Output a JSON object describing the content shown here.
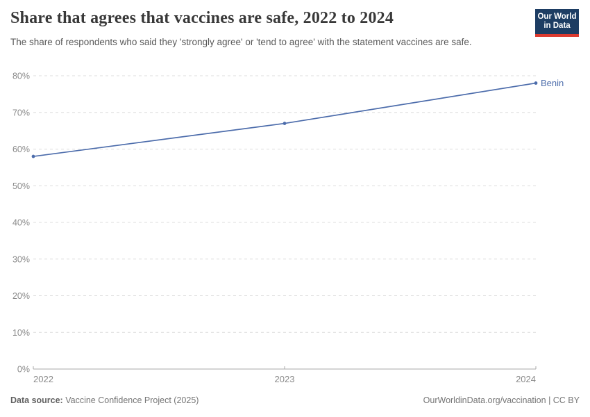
{
  "header": {
    "title": "Share that agrees that vaccines are safe, 2022 to 2024",
    "subtitle": "The share of respondents who said they 'strongly agree' or 'tend to agree' with the statement vaccines are safe."
  },
  "logo": {
    "line1": "Our World",
    "line2": "in Data",
    "bg_color": "#1d3d63",
    "accent_color": "#dc3a2f"
  },
  "chart_data": {
    "type": "line",
    "title": "Share that agrees that vaccines are safe, 2022 to 2024",
    "x": [
      2022,
      2023,
      2024
    ],
    "x_tick_labels": [
      "2022",
      "2023",
      "2024"
    ],
    "series": [
      {
        "name": "Benin",
        "values": [
          58,
          67,
          78
        ],
        "color": "#4c6cab"
      }
    ],
    "ylim": [
      0,
      80
    ],
    "yticks": [
      0,
      10,
      20,
      30,
      40,
      50,
      60,
      70,
      80
    ],
    "y_unit": "%",
    "grid": "horizontal-dashed",
    "gridline_color": "#dcdcdc",
    "axis_color": "#a8a8a8",
    "tick_label_color": "#8a8a8a",
    "legend": "end-of-line-label"
  },
  "footer": {
    "source_label": "Data source:",
    "source_text": " Vaccine Confidence Project (2025)",
    "right_text": "OurWorldinData.org/vaccination | CC BY"
  }
}
